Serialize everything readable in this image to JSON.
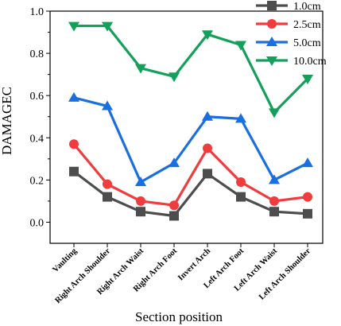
{
  "chart_data": {
    "type": "line",
    "xlabel": "Section position",
    "ylabel": "DAMAGEC",
    "ylim": [
      -0.1,
      1.0
    ],
    "yticks": [
      "0.0",
      "0.2",
      "0.4",
      "0.6",
      "0.8",
      "1.0"
    ],
    "categories": [
      "Vaulting",
      "Right Arch Shoulder",
      "Right Arch Waist",
      "Right Arch Foot",
      "Invert Arch",
      "Left Arch Foot",
      "Left Arch Waist",
      "Left Arch Shoulder"
    ],
    "legend_position": "top-right",
    "series": [
      {
        "name": "1.0cm",
        "color": "#4d4d4d",
        "marker": "square",
        "values": [
          0.24,
          0.12,
          0.05,
          0.03,
          0.23,
          0.12,
          0.05,
          0.04
        ]
      },
      {
        "name": "2.5cm",
        "color": "#f03c3c",
        "marker": "circle",
        "values": [
          0.37,
          0.18,
          0.1,
          0.08,
          0.35,
          0.19,
          0.1,
          0.12
        ]
      },
      {
        "name": "5.0cm",
        "color": "#1a6fe0",
        "marker": "triangle-up",
        "values": [
          0.59,
          0.55,
          0.19,
          0.28,
          0.5,
          0.49,
          0.2,
          0.28
        ]
      },
      {
        "name": "10.0cm",
        "color": "#12a05a",
        "marker": "triangle-down",
        "values": [
          0.93,
          0.93,
          0.73,
          0.69,
          0.89,
          0.84,
          0.52,
          0.68
        ]
      }
    ]
  }
}
